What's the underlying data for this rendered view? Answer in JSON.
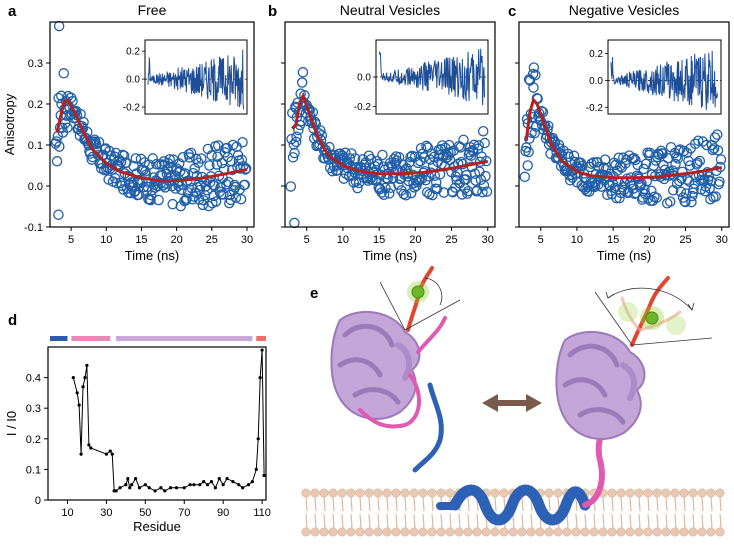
{
  "panel_letters": {
    "a": "a",
    "b": "b",
    "c": "c",
    "d": "d",
    "e": "e"
  },
  "chart_data": [
    {
      "id": "a",
      "type": "scatter",
      "title": "Free",
      "xlabel": "Time (ns)",
      "ylabel": "Anisotropy",
      "xlim": [
        2,
        31
      ],
      "ylim": [
        -0.1,
        0.4
      ],
      "xticks": [
        "5",
        "10",
        "15",
        "20",
        "25",
        "30"
      ],
      "yticks": [
        "-0.1",
        "0.0",
        "0.1",
        "0.2",
        "0.3"
      ],
      "fit_points": [
        [
          3.0,
          0.13
        ],
        [
          3.5,
          0.17
        ],
        [
          4.0,
          0.205
        ],
        [
          4.5,
          0.21
        ],
        [
          5.5,
          0.18
        ],
        [
          6.5,
          0.14
        ],
        [
          8,
          0.09
        ],
        [
          10,
          0.055
        ],
        [
          12,
          0.035
        ],
        [
          15,
          0.02
        ],
        [
          18,
          0.012
        ],
        [
          21,
          0.014
        ],
        [
          24,
          0.02
        ],
        [
          27,
          0.03
        ],
        [
          30,
          0.04
        ]
      ],
      "inset": {
        "ylim": [
          -0.25,
          0.28
        ],
        "yticks": [
          "-0.2",
          "0.0",
          "0.2"
        ],
        "noise_scale": [
          0.02,
          0.22
        ]
      }
    },
    {
      "id": "b",
      "type": "scatter",
      "title": "Neutral Vesicles",
      "xlabel": "Time (ns)",
      "xlim": [
        2,
        31
      ],
      "ylim": [
        -0.1,
        0.4
      ],
      "xticks": [
        "5",
        "10",
        "15",
        "20",
        "25",
        "30"
      ],
      "yticks": [],
      "fit_points": [
        [
          3.0,
          0.14
        ],
        [
          3.5,
          0.15
        ],
        [
          4.0,
          0.2
        ],
        [
          4.5,
          0.22
        ],
        [
          5.5,
          0.17
        ],
        [
          6.5,
          0.12
        ],
        [
          8,
          0.075
        ],
        [
          10,
          0.05
        ],
        [
          12,
          0.037
        ],
        [
          15,
          0.03
        ],
        [
          18,
          0.03
        ],
        [
          21,
          0.033
        ],
        [
          24,
          0.04
        ],
        [
          27,
          0.05
        ],
        [
          30,
          0.06
        ]
      ],
      "inset": {
        "ylim": [
          -0.25,
          0.25
        ],
        "yticks": [
          "-0.2",
          "0.0"
        ],
        "noise_scale": [
          0.02,
          0.2
        ]
      }
    },
    {
      "id": "c",
      "type": "scatter",
      "title": "Negative Vesicles",
      "xlabel": "Time (ns)",
      "xlim": [
        2,
        31
      ],
      "ylim": [
        -0.1,
        0.4
      ],
      "xticks": [
        "5",
        "10",
        "15",
        "20",
        "25",
        "30"
      ],
      "yticks": [],
      "fit_points": [
        [
          3.0,
          0.11
        ],
        [
          3.5,
          0.18
        ],
        [
          4.0,
          0.21
        ],
        [
          4.5,
          0.2
        ],
        [
          5.5,
          0.15
        ],
        [
          6.5,
          0.1
        ],
        [
          8,
          0.06
        ],
        [
          10,
          0.035
        ],
        [
          12,
          0.025
        ],
        [
          15,
          0.02
        ],
        [
          18,
          0.02
        ],
        [
          21,
          0.022
        ],
        [
          24,
          0.028
        ],
        [
          27,
          0.035
        ],
        [
          30,
          0.045
        ]
      ],
      "inset": {
        "ylim": [
          -0.25,
          0.3
        ],
        "yticks": [
          "-0.2",
          "0.0",
          "0.2"
        ],
        "noise_scale": [
          0.02,
          0.25
        ]
      }
    },
    {
      "id": "d",
      "type": "line",
      "xlabel": "Residue",
      "ylabel": "I / I0",
      "xlim": [
        0,
        112
      ],
      "ylim": [
        0,
        0.5
      ],
      "xticks": [
        "10",
        "30",
        "50",
        "70",
        "90",
        "110"
      ],
      "yticks": [
        "0",
        "0.1",
        "0.2",
        "0.3",
        "0.4"
      ],
      "x": [
        13,
        15,
        16,
        17,
        18,
        19,
        20,
        21,
        22,
        30,
        32,
        33,
        34,
        35,
        37,
        40,
        41,
        42,
        43,
        45,
        47,
        50,
        52,
        55,
        58,
        60,
        63,
        66,
        70,
        73,
        75,
        78,
        80,
        82,
        84,
        86,
        88,
        90,
        92,
        95,
        98,
        100,
        103,
        105,
        107,
        108,
        109,
        110,
        111
      ],
      "y": [
        0.4,
        0.35,
        0.31,
        0.15,
        0.37,
        0.4,
        0.44,
        0.18,
        0.17,
        0.15,
        0.16,
        0.15,
        0.03,
        0.03,
        0.04,
        0.05,
        0.07,
        0.04,
        0.05,
        0.07,
        0.04,
        0.05,
        0.04,
        0.03,
        0.04,
        0.03,
        0.04,
        0.04,
        0.04,
        0.05,
        0.05,
        0.05,
        0.06,
        0.05,
        0.06,
        0.04,
        0.07,
        0.05,
        0.07,
        0.06,
        0.05,
        0.04,
        0.05,
        0.06,
        0.1,
        0.2,
        0.4,
        0.49,
        0.08
      ],
      "domain_bar": [
        {
          "start": 1,
          "end": 10,
          "color": "#2f5aa8"
        },
        {
          "start": 12,
          "end": 32,
          "color": "#e68ab6"
        },
        {
          "start": 35,
          "end": 105,
          "color": "#c7a8d8"
        },
        {
          "start": 107,
          "end": 112,
          "color": "#f07065"
        }
      ]
    }
  ],
  "colors": {
    "marker": "#1f5ea8",
    "fit": "#b22222",
    "inset_line": "#1f4e99",
    "protein": "#c3a5d8",
    "protein_dark": "#9d79b9",
    "linker": "#e05ab1",
    "helix": "#2d61b5",
    "tail": "#e2462f",
    "dye": "#8ccf2a",
    "lipid_head": "#e9c9b3",
    "lipid_tail": "#d9b9a0",
    "arrow": "#7a5b4b"
  }
}
